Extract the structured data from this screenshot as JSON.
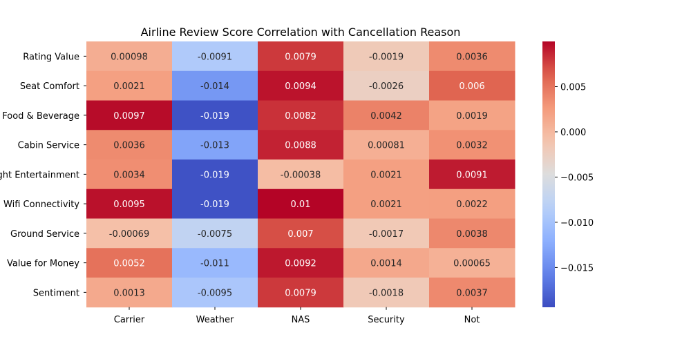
{
  "chart_data": {
    "type": "heatmap",
    "title": "Airline Review Score Correlation with Cancellation Reason",
    "xlabel": "",
    "ylabel": "",
    "columns": [
      "Carrier",
      "Weather",
      "NAS",
      "Security",
      "Not"
    ],
    "rows": [
      "Rating Value",
      "Seat Comfort",
      "Food & Beverage",
      "Cabin Service",
      "Inflight Entertainment",
      "Wifi Connectivity",
      "Ground Service",
      "Value for Money",
      "Sentiment"
    ],
    "values": [
      [
        0.00098,
        -0.0091,
        0.0079,
        -0.0019,
        0.0036
      ],
      [
        0.0021,
        -0.014,
        0.0094,
        -0.0026,
        0.006
      ],
      [
        0.0097,
        -0.019,
        0.0082,
        0.0042,
        0.0019
      ],
      [
        0.0036,
        -0.013,
        0.0088,
        0.00081,
        0.0032
      ],
      [
        0.0034,
        -0.019,
        -0.00038,
        0.0021,
        0.0091
      ],
      [
        0.0095,
        -0.019,
        0.01,
        0.0021,
        0.0022
      ],
      [
        -0.00069,
        -0.0075,
        0.007,
        -0.0017,
        0.0038
      ],
      [
        0.0052,
        -0.011,
        0.0092,
        0.0014,
        0.00065
      ],
      [
        0.0013,
        -0.0095,
        0.0079,
        -0.0018,
        0.0037
      ]
    ],
    "annotations": [
      [
        "0.00098",
        "-0.0091",
        "0.0079",
        "-0.0019",
        "0.0036"
      ],
      [
        "0.0021",
        "-0.014",
        "0.0094",
        "-0.0026",
        "0.006"
      ],
      [
        "0.0097",
        "-0.019",
        "0.0082",
        "0.0042",
        "0.0019"
      ],
      [
        "0.0036",
        "-0.013",
        "0.0088",
        "0.00081",
        "0.0032"
      ],
      [
        "0.0034",
        "-0.019",
        "-0.00038",
        "0.0021",
        "0.0091"
      ],
      [
        "0.0095",
        "-0.019",
        "0.01",
        "0.0021",
        "0.0022"
      ],
      [
        "-0.00069",
        "-0.0075",
        "0.007",
        "-0.0017",
        "0.0038"
      ],
      [
        "0.0052",
        "-0.011",
        "0.0092",
        "0.0014",
        "0.00065"
      ],
      [
        "0.0013",
        "-0.0095",
        "0.0079",
        "-0.0018",
        "0.0037"
      ]
    ],
    "colormap": "coolwarm",
    "vmin": -0.0194,
    "vmax": 0.01,
    "colorbar_ticks": [
      0.005,
      0.0,
      -0.005,
      -0.01,
      -0.015
    ],
    "colorbar_tick_labels": [
      "0.005",
      "0.000",
      "−0.005",
      "−0.010",
      "−0.015"
    ],
    "grid": false,
    "legend": "colorbar-right"
  }
}
